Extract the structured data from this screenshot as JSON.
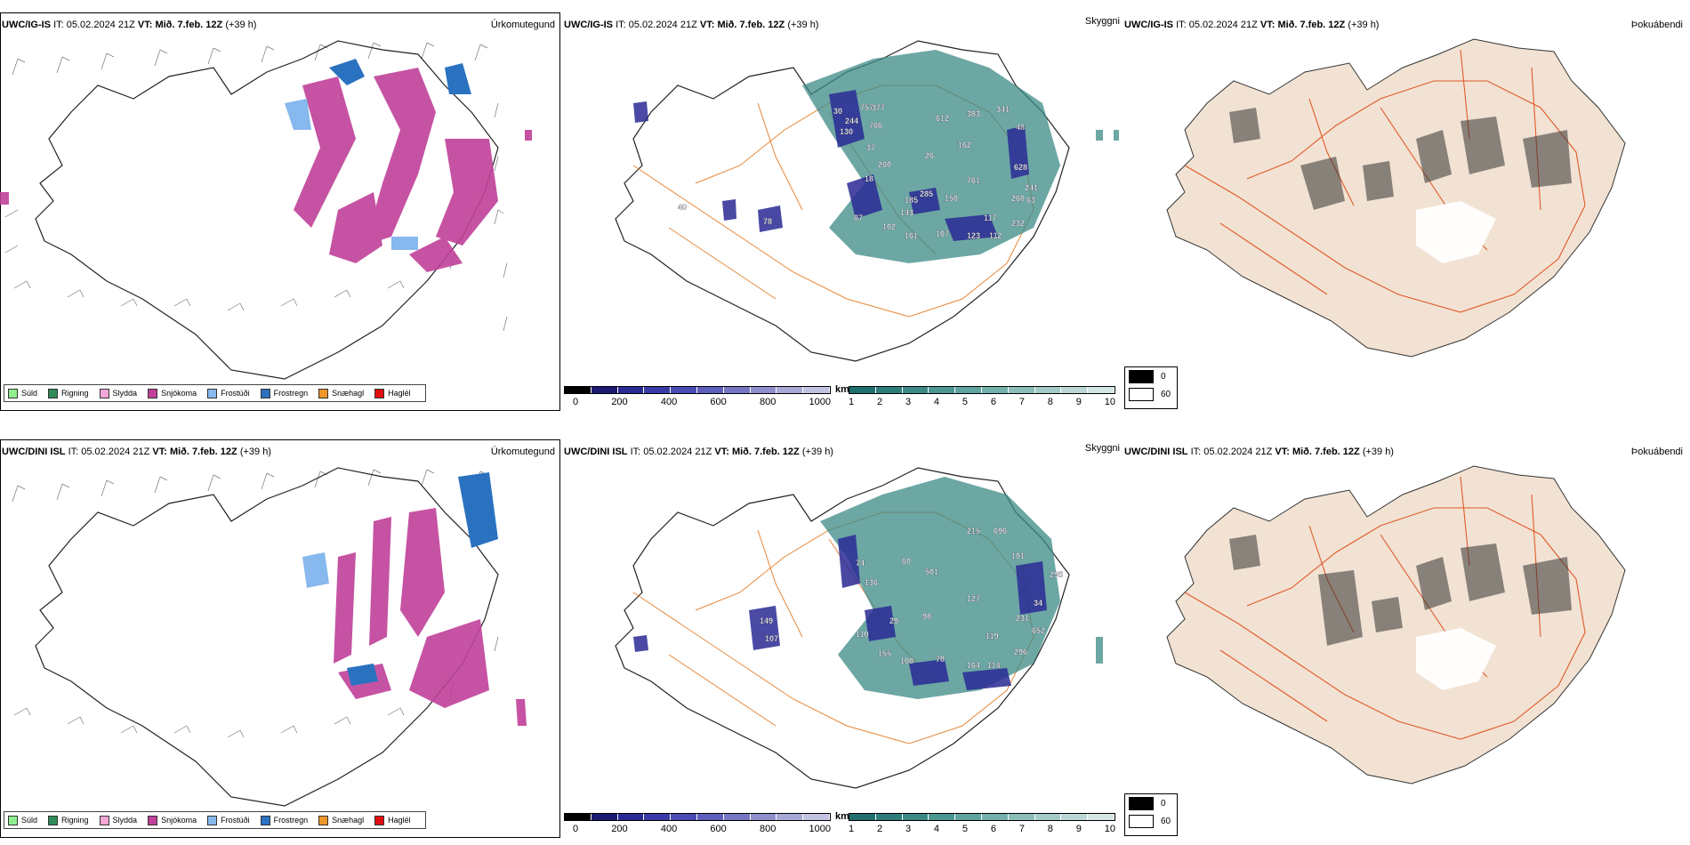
{
  "rows": [
    {
      "model": "UWC/IG-IS",
      "it_label": "IT:",
      "it_value": "05.02.2024 21Z",
      "vt_label": "VT:",
      "vt_value": "Mið. 7.feb. 12Z",
      "lead": "(+39 h)"
    },
    {
      "model": "UWC/DINI ISL",
      "it_label": "IT:",
      "it_value": "05.02.2024 21Z",
      "vt_label": "VT:",
      "vt_value": "Mið. 7.feb. 12Z",
      "lead": "(+39 h)"
    }
  ],
  "panel_titles": {
    "precip": "Úrkomutegund",
    "cloud": "Skyggni",
    "fog": "Þokuábendi"
  },
  "precip_legend": [
    {
      "label": "Súld",
      "color": "#90ee90"
    },
    {
      "label": "Rigning",
      "color": "#2e8b57"
    },
    {
      "label": "Slydda",
      "color": "#f4a6d7"
    },
    {
      "label": "Snjókoma",
      "color": "#c0409a"
    },
    {
      "label": "Frostúði",
      "color": "#87b8ee"
    },
    {
      "label": "Frostregn",
      "color": "#2a72c0"
    },
    {
      "label": "Snæhagl",
      "color": "#f0962a"
    },
    {
      "label": "Haglél",
      "color": "#e01010"
    }
  ],
  "cloud_legend": {
    "height_unit": "m",
    "height_ticks": [
      "0",
      "200",
      "400",
      "600",
      "800",
      "1000"
    ],
    "height_colors": [
      "#000000",
      "#1a1a70",
      "#2a2a95",
      "#3a3aa8",
      "#4b4bb5",
      "#5e5ebc",
      "#7676c4",
      "#8f8fcc",
      "#a8a8d6",
      "#c2c2e2"
    ],
    "vis_unit": "km",
    "vis_ticks": [
      "1",
      "2",
      "3",
      "4",
      "5",
      "6",
      "7",
      "8",
      "9",
      "10"
    ],
    "vis_colors": [
      "#1f6f6f",
      "#2c7d7a",
      "#3b8a86",
      "#4c9792",
      "#5fa49f",
      "#74b1ac",
      "#8bbeb9",
      "#a3cbc7",
      "#bcd8d5",
      "#d5e6e4"
    ]
  },
  "fog_legend": {
    "values": [
      "0",
      "60"
    ],
    "colors": [
      "#000000",
      "#ffffff"
    ]
  },
  "cloud_labels": [
    [
      "30",
      "244",
      "130",
      "757",
      "377",
      "766",
      "37",
      "260",
      "612",
      "383",
      "341",
      "26",
      "162",
      "48",
      "628",
      "18",
      "185",
      "143",
      "285",
      "150",
      "761",
      "260",
      "241",
      "63",
      "117",
      "232",
      "87",
      "78",
      "102",
      "161",
      "107",
      "123",
      "112",
      "40"
    ],
    [
      "215",
      "696",
      "101",
      "74",
      "136",
      "60",
      "501",
      "98",
      "29",
      "127",
      "231",
      "34",
      "652",
      "119",
      "296",
      "149",
      "107",
      "110",
      "155",
      "100",
      "78",
      "164",
      "114",
      "295"
    ]
  ]
}
